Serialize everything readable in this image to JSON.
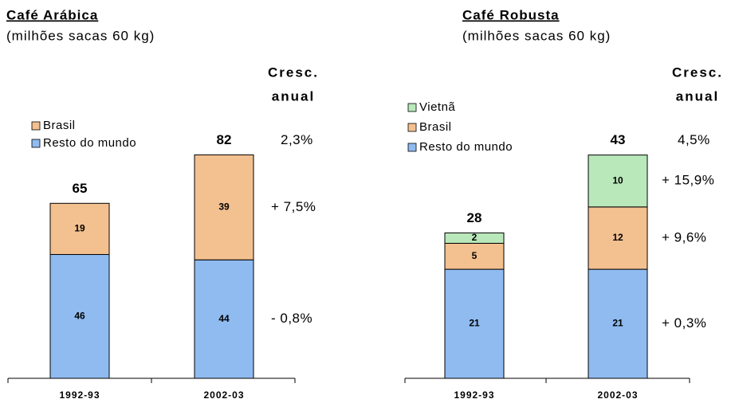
{
  "chart_data": [
    {
      "type": "bar",
      "stacked": true,
      "title": "Café Arábica",
      "subtitle": "(milhões sacas 60 kg)",
      "growth_title": [
        "Cresc.",
        "anual"
      ],
      "categories": [
        "1992-93",
        "2002-03"
      ],
      "series": [
        {
          "name": "Resto do mundo",
          "color": "#8fbbf0",
          "values": [
            46,
            44
          ],
          "growth": "- 0,8%"
        },
        {
          "name": "Brasil",
          "color": "#f3c090",
          "values": [
            19,
            39
          ],
          "growth": "+ 7,5%"
        }
      ],
      "totals": [
        65,
        82
      ],
      "total_growth": "2,3%"
    },
    {
      "type": "bar",
      "stacked": true,
      "title": "Café Robusta",
      "subtitle": "(milhões sacas 60 kg)",
      "growth_title": [
        "Cresc.",
        "anual"
      ],
      "categories": [
        "1992-93",
        "2002-03"
      ],
      "series": [
        {
          "name": "Resto do mundo",
          "color": "#8fbbf0",
          "values": [
            21,
            21
          ],
          "growth": "+ 0,3%"
        },
        {
          "name": "Brasil",
          "color": "#f3c090",
          "values": [
            5,
            12
          ],
          "growth": "+ 9,6%"
        },
        {
          "name": "Vietnã",
          "color": "#b9e8bb",
          "values": [
            2,
            10
          ],
          "growth": "+ 15,9%"
        }
      ],
      "totals": [
        28,
        43
      ],
      "total_growth": "4,5%"
    }
  ]
}
